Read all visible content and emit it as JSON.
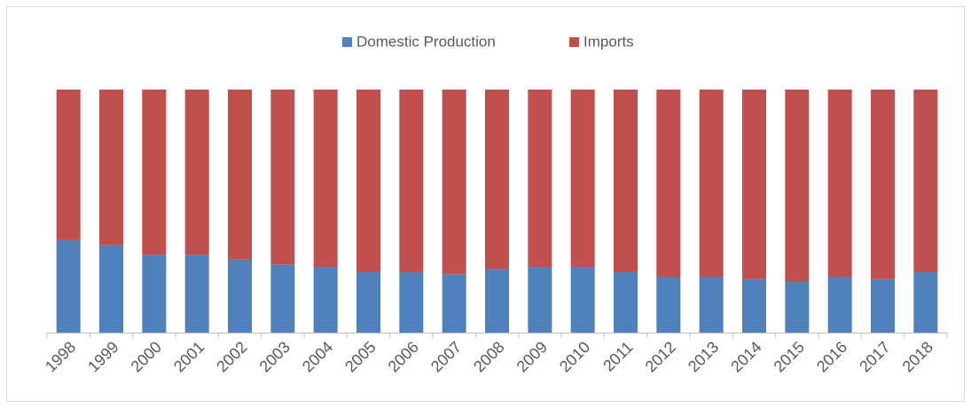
{
  "chart_data": {
    "type": "stacked_bar_100",
    "categories": [
      "1998",
      "1999",
      "2000",
      "2001",
      "2002",
      "2003",
      "2004",
      "2005",
      "2006",
      "2007",
      "2008",
      "2009",
      "2010",
      "2011",
      "2012",
      "2013",
      "2014",
      "2015",
      "2016",
      "2017",
      "2018"
    ],
    "series": [
      {
        "name": "Domestic Production",
        "color": "#4f81bd",
        "values": [
          38,
          36,
          32,
          32,
          30,
          28,
          27,
          25,
          25,
          24,
          26,
          27,
          27,
          25,
          23,
          23,
          22,
          21,
          23,
          22,
          25
        ]
      },
      {
        "name": "Imports",
        "color": "#c0504d",
        "values": [
          62,
          64,
          68,
          68,
          70,
          72,
          73,
          75,
          75,
          76,
          74,
          73,
          73,
          75,
          77,
          77,
          78,
          79,
          77,
          78,
          75
        ]
      }
    ],
    "legend": "top"
  }
}
